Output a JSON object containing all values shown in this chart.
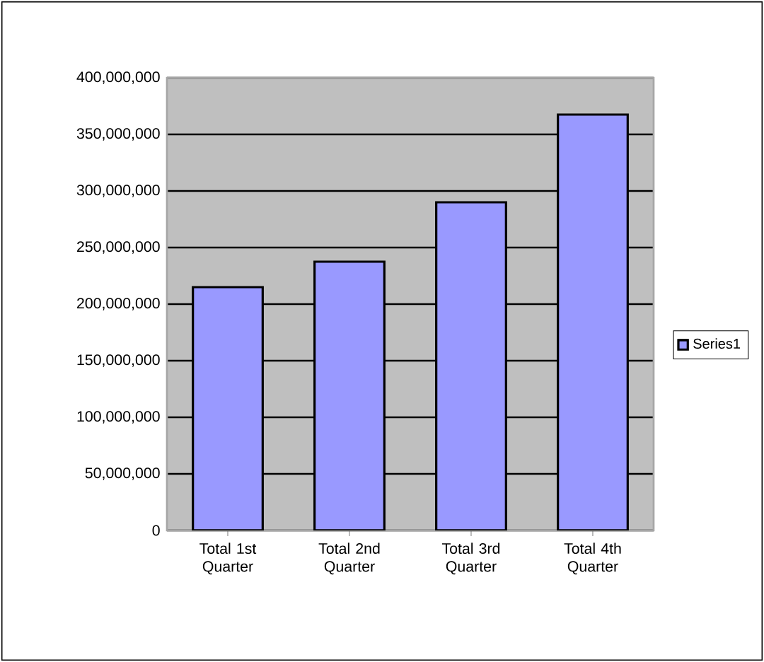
{
  "chart_data": {
    "type": "bar",
    "categories": [
      "Total 1st Quarter",
      "Total 2nd Quarter",
      "Total 3rd Quarter",
      "Total 4th Quarter"
    ],
    "series": [
      {
        "name": "Series1",
        "color": "#9999ff",
        "values": [
          215000000,
          237500000,
          290000000,
          367500000
        ]
      }
    ],
    "ylim": [
      0,
      400000000
    ],
    "yticks": [
      0,
      {
        "value": 50000000,
        "label": "50,000,000"
      },
      {
        "value": 100000000,
        "label": "100,000,000"
      },
      {
        "value": 150000000,
        "label": "150,000,000"
      },
      {
        "value": 200000000,
        "label": "200,000,000"
      },
      {
        "value": 250000000,
        "label": "250,000,000"
      },
      {
        "value": 300000000,
        "label": "300,000,000"
      },
      {
        "value": 350000000,
        "label": "350,000,000"
      },
      {
        "value": 400000000,
        "label": "400,000,000"
      }
    ],
    "grid": "y",
    "legend": "right"
  }
}
